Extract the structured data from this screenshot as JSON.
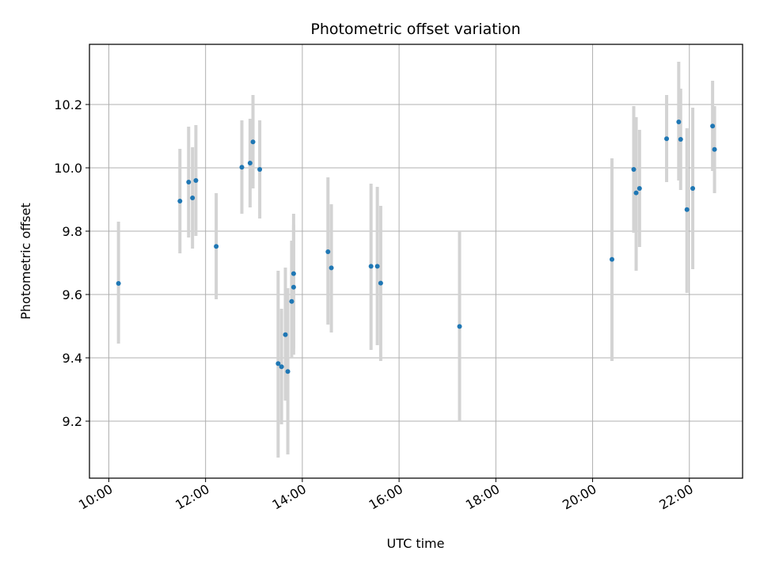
{
  "chart_data": {
    "type": "scatter",
    "title": "Photometric offset variation",
    "xlabel": "UTC time",
    "ylabel": "Photometric offset",
    "xlim": [
      9.6,
      23.1
    ],
    "ylim": [
      9.02,
      10.39
    ],
    "x_ticks": [
      {
        "value": 10,
        "label": "10:00"
      },
      {
        "value": 12,
        "label": "12:00"
      },
      {
        "value": 14,
        "label": "14:00"
      },
      {
        "value": 16,
        "label": "16:00"
      },
      {
        "value": 18,
        "label": "18:00"
      },
      {
        "value": 20,
        "label": "20:00"
      },
      {
        "value": 22,
        "label": "22:00"
      }
    ],
    "y_ticks": [
      {
        "value": 9.2,
        "label": "9.2"
      },
      {
        "value": 9.4,
        "label": "9.4"
      },
      {
        "value": 9.6,
        "label": "9.6"
      },
      {
        "value": 9.8,
        "label": "9.8"
      },
      {
        "value": 10.0,
        "label": "10.0"
      },
      {
        "value": 10.2,
        "label": "10.2"
      }
    ],
    "grid": true,
    "colors": {
      "point": "#1f77b4",
      "errorbar": "#d3d3d3",
      "grid": "#b0b0b0",
      "axes": "#000000"
    },
    "points": [
      {
        "x": 10.2,
        "y": 9.635,
        "lo": 9.445,
        "hi": 9.83
      },
      {
        "x": 11.47,
        "y": 9.895,
        "lo": 9.73,
        "hi": 10.06
      },
      {
        "x": 11.65,
        "y": 9.955,
        "lo": 9.78,
        "hi": 10.13
      },
      {
        "x": 11.73,
        "y": 9.905,
        "lo": 9.745,
        "hi": 10.065
      },
      {
        "x": 11.8,
        "y": 9.96,
        "lo": 9.785,
        "hi": 10.135
      },
      {
        "x": 12.22,
        "y": 9.752,
        "lo": 9.585,
        "hi": 9.92
      },
      {
        "x": 12.75,
        "y": 10.002,
        "lo": 9.855,
        "hi": 10.15
      },
      {
        "x": 12.92,
        "y": 10.015,
        "lo": 9.875,
        "hi": 10.155
      },
      {
        "x": 12.98,
        "y": 10.082,
        "lo": 9.935,
        "hi": 10.23
      },
      {
        "x": 13.12,
        "y": 9.995,
        "lo": 9.84,
        "hi": 10.15
      },
      {
        "x": 13.5,
        "y": 9.382,
        "lo": 9.085,
        "hi": 9.675
      },
      {
        "x": 13.57,
        "y": 9.372,
        "lo": 9.19,
        "hi": 9.555
      },
      {
        "x": 13.65,
        "y": 9.473,
        "lo": 9.265,
        "hi": 9.685
      },
      {
        "x": 13.7,
        "y": 9.357,
        "lo": 9.095,
        "hi": 9.62
      },
      {
        "x": 13.78,
        "y": 9.578,
        "lo": 9.4,
        "hi": 9.77
      },
      {
        "x": 13.82,
        "y": 9.623,
        "lo": 9.41,
        "hi": 9.855
      },
      {
        "x": 13.82,
        "y": 9.666,
        "lo": 9.43,
        "hi": 9.82
      },
      {
        "x": 14.53,
        "y": 9.735,
        "lo": 9.505,
        "hi": 9.97
      },
      {
        "x": 14.6,
        "y": 9.684,
        "lo": 9.48,
        "hi": 9.885
      },
      {
        "x": 15.42,
        "y": 9.689,
        "lo": 9.425,
        "hi": 9.95
      },
      {
        "x": 15.55,
        "y": 9.689,
        "lo": 9.44,
        "hi": 9.94
      },
      {
        "x": 15.62,
        "y": 9.636,
        "lo": 9.39,
        "hi": 9.88
      },
      {
        "x": 17.25,
        "y": 9.499,
        "lo": 9.2,
        "hi": 9.8
      },
      {
        "x": 20.4,
        "y": 9.711,
        "lo": 9.39,
        "hi": 10.03
      },
      {
        "x": 20.85,
        "y": 9.995,
        "lo": 9.795,
        "hi": 10.195
      },
      {
        "x": 20.9,
        "y": 9.921,
        "lo": 9.675,
        "hi": 10.16
      },
      {
        "x": 20.97,
        "y": 9.935,
        "lo": 9.75,
        "hi": 10.12
      },
      {
        "x": 21.53,
        "y": 10.092,
        "lo": 9.955,
        "hi": 10.23
      },
      {
        "x": 21.78,
        "y": 10.145,
        "lo": 9.96,
        "hi": 10.335
      },
      {
        "x": 21.82,
        "y": 10.09,
        "lo": 9.93,
        "hi": 10.25
      },
      {
        "x": 21.95,
        "y": 9.868,
        "lo": 9.605,
        "hi": 10.125
      },
      {
        "x": 22.07,
        "y": 9.935,
        "lo": 9.68,
        "hi": 10.19
      },
      {
        "x": 22.48,
        "y": 10.132,
        "lo": 9.99,
        "hi": 10.275
      },
      {
        "x": 22.52,
        "y": 10.058,
        "lo": 9.92,
        "hi": 10.195
      }
    ]
  }
}
